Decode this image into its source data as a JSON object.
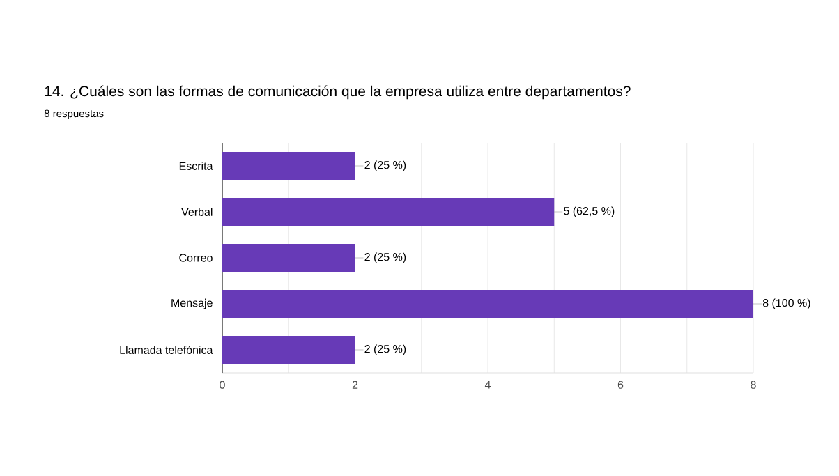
{
  "chart_data": {
    "type": "bar",
    "orientation": "horizontal",
    "title": "14. ¿Cuáles son las formas de comunicación que la empresa utiliza entre departamentos?",
    "subtitle": "8 respuestas",
    "categories": [
      "Escrita",
      "Verbal",
      "Correo",
      "Mensaje",
      "Llamada telefónica"
    ],
    "values": [
      2,
      5,
      2,
      8,
      2
    ],
    "value_labels": [
      "2 (25 %)",
      "5 (62,5 %)",
      "2 (25 %)",
      "8 (100 %)",
      "2 (25 %)"
    ],
    "color": "#673ab7",
    "xlim": [
      0,
      8
    ],
    "xticks": [
      0,
      {
        "value": 1,
        "label": null
      },
      2,
      {
        "value": 3,
        "label": null
      },
      4,
      {
        "value": 5,
        "label": null
      },
      6,
      {
        "value": 7,
        "label": null
      },
      8
    ],
    "grid": "x"
  }
}
